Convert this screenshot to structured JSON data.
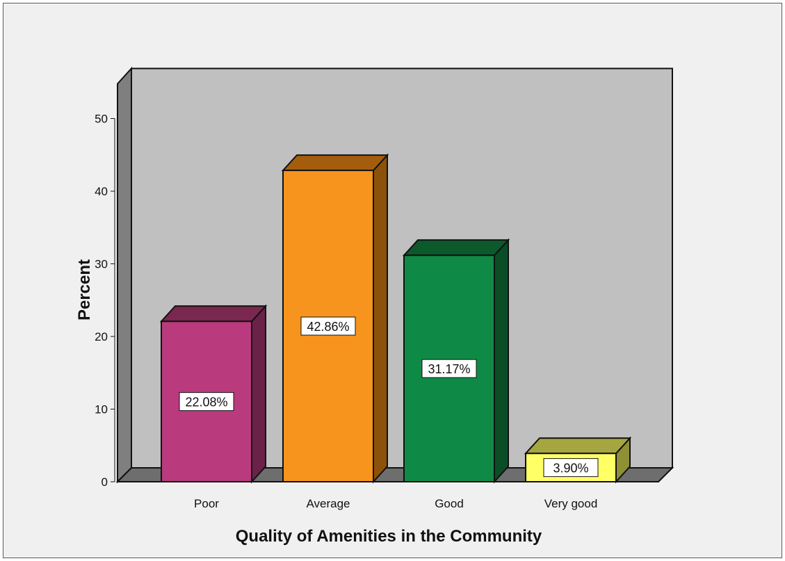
{
  "chart_data": {
    "type": "bar",
    "categories": [
      "Poor",
      "Average",
      "Good",
      "Very good"
    ],
    "values": [
      22.08,
      42.86,
      31.17,
      3.9
    ],
    "data_labels": [
      "22.08%",
      "42.86%",
      "31.17%",
      "3.90%"
    ],
    "title": "",
    "xlabel": "Quality of Amenities in the Community",
    "ylabel": "Percent",
    "ylim": [
      0,
      50
    ],
    "yticks": [
      0,
      10,
      20,
      30,
      40,
      50
    ],
    "grid": false,
    "legend": "none",
    "bar_colors": [
      "#b93b7d",
      "#f7941d",
      "#0f8a46",
      "#ffff66"
    ],
    "bar_side_colors": [
      "#6b2249",
      "#8c5209",
      "#0a4d27",
      "#8f8f35"
    ],
    "bar_top_colors": [
      "#7a284f",
      "#a45d0d",
      "#0c5a2c",
      "#a6a640"
    ],
    "plot_background": "#c0c0c0",
    "floor_color": "#6e6e6e",
    "wall_color": "#7f7f7f",
    "frame_background": "#f0f0f0"
  }
}
